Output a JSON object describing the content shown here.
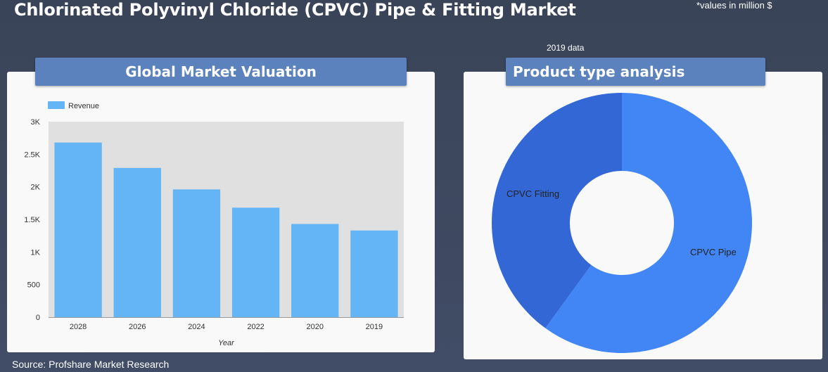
{
  "page": {
    "title": "Chlorinated Polyvinyl Chloride (CPVC) Pipe & Fitting Market",
    "units_note": "*values in million $",
    "year_note": "2019 data",
    "source": "Source: Profshare Market Research"
  },
  "panels": {
    "left_header": "Global Market Valuation",
    "right_header": "Product type analysis"
  },
  "colors": {
    "bar": "#64b5f6",
    "pipe": "#4285f4",
    "fitting": "#3367d6",
    "header": "#5b82bd"
  },
  "chart_data": [
    {
      "type": "bar",
      "categories": [
        "2028",
        "2026",
        "2024",
        "2022",
        "2020",
        "2019"
      ],
      "series": [
        {
          "name": "Revenue",
          "values": [
            2680,
            2290,
            1960,
            1680,
            1430,
            1330
          ]
        }
      ],
      "xlabel": "Year",
      "ylabel": "",
      "ylim": [
        0,
        3000
      ],
      "yticks": [
        0,
        500,
        1000,
        1500,
        2000,
        2500,
        3000
      ],
      "ytick_labels": [
        "0",
        "500",
        "1K",
        "1.5K",
        "2K",
        "2.5K",
        "3K"
      ],
      "legend": "top-left",
      "grid": false
    },
    {
      "type": "pie",
      "donut": true,
      "labels": [
        "CPVC Pipe",
        "CPVC Fitting"
      ],
      "values": [
        60,
        40
      ]
    }
  ]
}
